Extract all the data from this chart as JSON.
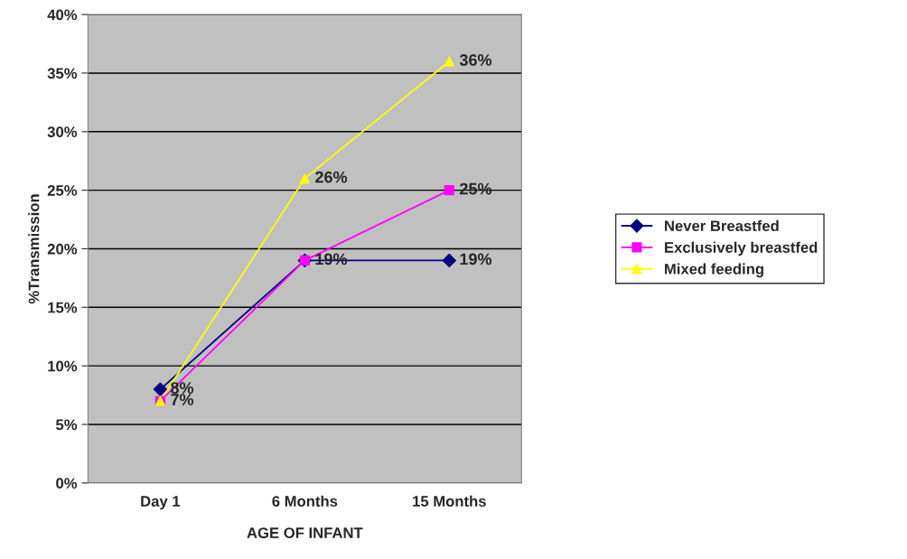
{
  "chart_data": {
    "type": "line",
    "xlabel": "AGE OF INFANT",
    "ylabel": "%Transmission",
    "categories": [
      "Day 1",
      "6 Months",
      "15 Months"
    ],
    "series": [
      {
        "name": "Never Breastfed",
        "color": "#000080",
        "marker": "diamond",
        "values": [
          8,
          19,
          19
        ],
        "value_labels": [
          "8%",
          "19%",
          "19%"
        ]
      },
      {
        "name": "Exclusively breastfed",
        "color": "#ff00ff",
        "marker": "square",
        "values": [
          7,
          19,
          25
        ],
        "value_labels": [
          null,
          null,
          "25%"
        ]
      },
      {
        "name": "Mixed feeding",
        "color": "#ffff00",
        "marker": "triangle",
        "values": [
          7,
          26,
          36
        ],
        "value_labels": [
          "7%",
          "26%",
          "36%"
        ]
      }
    ],
    "ylim": [
      0,
      40
    ],
    "yticks": [
      {
        "value": 0,
        "label": "0%"
      },
      {
        "value": 5,
        "label": "5%"
      },
      {
        "value": 10,
        "label": "10%"
      },
      {
        "value": 15,
        "label": "15%"
      },
      {
        "value": 20,
        "label": "20%"
      },
      {
        "value": 25,
        "label": "25%"
      },
      {
        "value": 30,
        "label": "30%"
      },
      {
        "value": 35,
        "label": "35%"
      },
      {
        "value": 40,
        "label": "40%"
      }
    ],
    "grid": "y",
    "legend": "right"
  }
}
